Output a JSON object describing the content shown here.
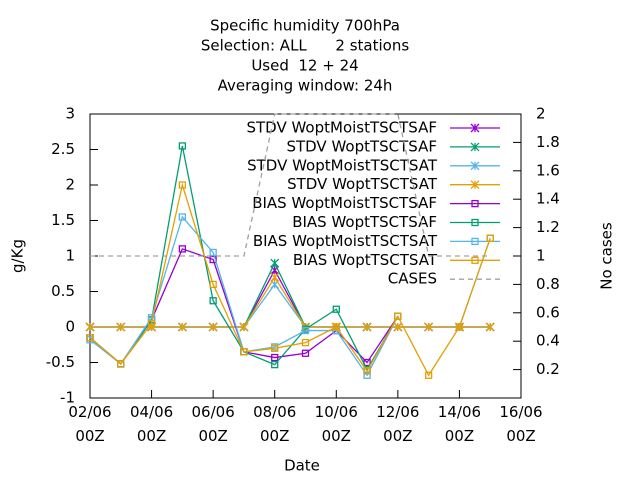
{
  "chart_data": {
    "type": "line",
    "title": "Specific humidity 700hPa",
    "subtitles": [
      "Selection: ALL      2 stations",
      "Used  12 + 24",
      "Averaging window: 24h"
    ],
    "x_label": "Date",
    "y_label": "g/Kg",
    "y2_label": "No cases",
    "categories": [
      "02/06 00Z",
      null,
      "04/06 00Z",
      null,
      "06/06 00Z",
      null,
      "08/06 00Z",
      null,
      "10/06 00Z",
      null,
      "12/06 00Z",
      null,
      "14/06 00Z",
      null,
      "16/06 00Z"
    ],
    "ylim": [
      -1,
      3
    ],
    "yticks": [
      -1,
      -0.5,
      0,
      0.5,
      1,
      1.5,
      2,
      2.5,
      3
    ],
    "y2lim": [
      0,
      2
    ],
    "y2ticks": [
      0.2,
      0.4,
      0.6,
      0.8,
      1,
      1.2,
      1.4,
      1.6,
      1.8,
      2
    ],
    "legend": "top-right",
    "series": [
      {
        "name": "STDV WoptMoistTSCTSAF",
        "color": "#9400d3",
        "marker": "x",
        "values": [
          0,
          0,
          0,
          0,
          0,
          0,
          0.8,
          0,
          0,
          0,
          0,
          0,
          0,
          0,
          null
        ]
      },
      {
        "name": "STDV WoptTSCTSAF",
        "color": "#009e73",
        "marker": "x",
        "values": [
          0,
          0,
          0,
          0,
          0,
          0,
          0.9,
          0,
          0,
          0,
          0,
          0,
          0,
          0,
          null
        ]
      },
      {
        "name": "STDV WoptMoistTSCTSAT",
        "color": "#56b4e9",
        "marker": "x",
        "values": [
          0,
          0,
          0,
          0,
          0,
          0,
          0.6,
          0,
          0,
          0,
          0,
          0,
          0,
          0,
          null
        ]
      },
      {
        "name": "STDV WoptTSCTSAT",
        "color": "#e69f00",
        "marker": "x",
        "values": [
          0,
          0,
          0,
          0,
          0,
          0,
          0.7,
          0,
          0,
          0,
          0,
          0,
          0,
          0,
          null
        ]
      },
      {
        "name": "BIAS WoptMoistTSCTSAF",
        "color": "#9400d3",
        "marker": "square",
        "values": [
          -0.15,
          -0.52,
          0.1,
          1.1,
          0.95,
          -0.35,
          -0.43,
          -0.37,
          -0.05,
          -0.5,
          0.15,
          null,
          null,
          null,
          null
        ]
      },
      {
        "name": "BIAS WoptTSCTSAF",
        "color": "#009e73",
        "marker": "square",
        "values": [
          -0.15,
          -0.52,
          0.1,
          2.55,
          0.37,
          -0.35,
          -0.53,
          -0.03,
          0.25,
          -0.6,
          0.15,
          null,
          null,
          null,
          null
        ]
      },
      {
        "name": "BIAS WoptMoistTSCTSAT",
        "color": "#56b4e9",
        "marker": "square",
        "values": [
          -0.18,
          -0.52,
          0.13,
          1.55,
          1.05,
          -0.35,
          -0.28,
          -0.05,
          -0.05,
          -0.68,
          0.15,
          null,
          0,
          1.25,
          null
        ]
      },
      {
        "name": "BIAS WoptTSCTSAT",
        "color": "#e69f00",
        "marker": "square",
        "values": [
          -0.15,
          -0.52,
          0.05,
          2.0,
          0.6,
          -0.35,
          -0.3,
          -0.22,
          0,
          -0.62,
          0.15,
          -0.68,
          0,
          1.25,
          null
        ]
      },
      {
        "name": "CASES",
        "color": "#a0a0a0",
        "marker": "dash",
        "axis": "y2",
        "values": [
          1,
          1,
          1,
          1,
          1,
          1,
          2,
          2,
          2,
          2,
          2,
          1,
          1,
          1,
          null
        ]
      }
    ]
  }
}
